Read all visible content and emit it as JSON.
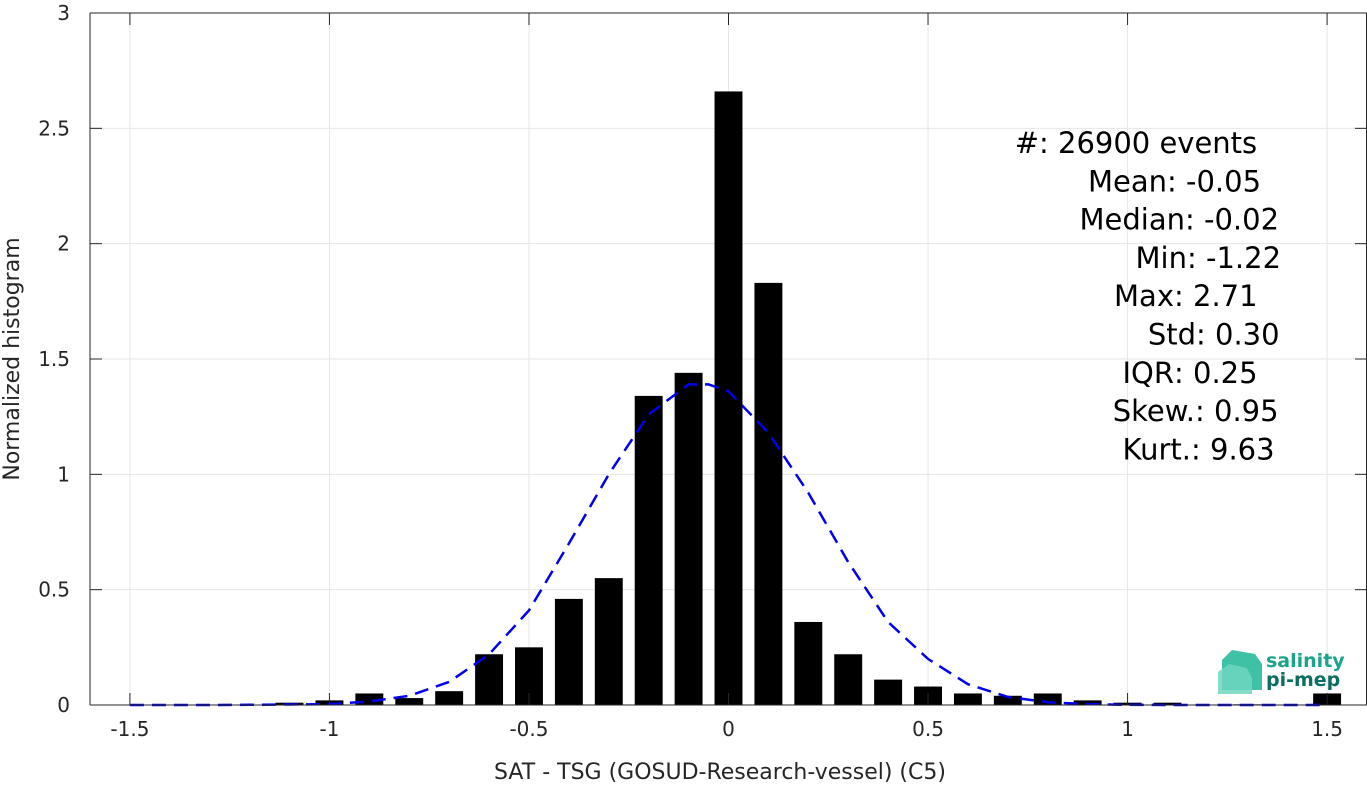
{
  "chart_data": {
    "type": "bar",
    "xlabel": "SAT - TSG (GOSUD-Research-vessel) (C5)",
    "ylabel": "Normalized histogram",
    "xlim": [
      -1.6,
      1.6
    ],
    "ylim": [
      0,
      3
    ],
    "grid": true,
    "x_ticks": [
      -1.5,
      -1,
      -0.5,
      0,
      0.5,
      1,
      1.5
    ],
    "x_tick_labels": [
      "-1.5",
      "-1",
      "-0.5",
      "0",
      "0.5",
      "1",
      "1.5"
    ],
    "y_ticks": [
      0,
      0.5,
      1,
      1.5,
      2,
      2.5,
      3
    ],
    "y_tick_labels": [
      "0",
      "0.5",
      "1",
      "1.5",
      "2",
      "2.5",
      "3"
    ],
    "bar_width": 0.07,
    "bar_color": "#000000",
    "series": [
      {
        "type": "bar",
        "x": [
          -1.5,
          -1.4,
          -1.3,
          -1.2,
          -1.1,
          -1.0,
          -0.9,
          -0.8,
          -0.7,
          -0.6,
          -0.5,
          -0.4,
          -0.3,
          -0.2,
          -0.1,
          0.0,
          0.1,
          0.2,
          0.3,
          0.4,
          0.5,
          0.6,
          0.7,
          0.8,
          0.9,
          1.0,
          1.1,
          1.2,
          1.3,
          1.4,
          1.5
        ],
        "values": [
          0,
          0,
          0,
          0,
          0.01,
          0.02,
          0.05,
          0.03,
          0.06,
          0.22,
          0.25,
          0.46,
          0.55,
          1.34,
          1.44,
          2.66,
          1.83,
          0.36,
          0.22,
          0.11,
          0.08,
          0.05,
          0.04,
          0.05,
          0.02,
          0.01,
          0.01,
          0.002,
          0.003,
          0.002,
          0.05
        ]
      },
      {
        "type": "line",
        "style": "dashed",
        "color": "#0000ee",
        "x": [
          -1.5,
          -1.4,
          -1.3,
          -1.2,
          -1.1,
          -1.0,
          -0.9,
          -0.8,
          -0.7,
          -0.6,
          -0.5,
          -0.4,
          -0.3,
          -0.2,
          -0.1,
          -0.05,
          0.0,
          0.1,
          0.2,
          0.3,
          0.4,
          0.5,
          0.6,
          0.7,
          0.8,
          0.9,
          1.0,
          1.1,
          1.2,
          1.3,
          1.4,
          1.5
        ],
        "values": [
          0,
          0,
          0,
          0.001,
          0.002,
          0.004,
          0.015,
          0.04,
          0.1,
          0.22,
          0.41,
          0.7,
          1.0,
          1.26,
          1.39,
          1.39,
          1.36,
          1.18,
          0.92,
          0.62,
          0.36,
          0.2,
          0.09,
          0.035,
          0.012,
          0.004,
          0.001,
          0,
          0,
          0,
          0,
          0
        ]
      }
    ],
    "stats": [
      {
        "label": "#  ",
        "value": ": 26900 events",
        "anchor_x": 1.02
      },
      {
        "label": "Mean ",
        "value": ": -0.05"
      },
      {
        "label": "Median ",
        "value": ": -0.02"
      },
      {
        "label": "Min ",
        "value": ": -1.22"
      },
      {
        "label": "Max ",
        "value": ": 2.71"
      },
      {
        "label": "Std ",
        "value": ": 0.30"
      },
      {
        "label": "IQR ",
        "value": ": 0.25"
      },
      {
        "label": "Skew. ",
        "value": ": 0.95"
      },
      {
        "label": "Kurt. ",
        "value": ": 9.63"
      }
    ],
    "logo": {
      "line1": "salinity",
      "line2": "pi-mep",
      "color1": "#1aa58a",
      "color2": "#0b6e60"
    }
  }
}
